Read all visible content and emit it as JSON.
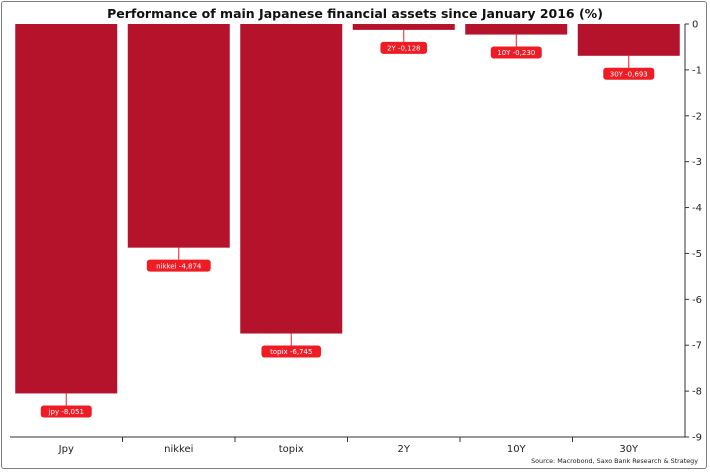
{
  "chart_data": {
    "type": "bar",
    "title": "Performance of main Japanese financial assets since January 2016 (%)",
    "source": "Source: Macrobond, Saxo Bank Research & Strategy",
    "categories": [
      "Jpy",
      "nikkei",
      "topix",
      "2Y",
      "10Y",
      "30Y"
    ],
    "values": [
      -8.051,
      -4.874,
      -6.745,
      -0.128,
      -0.23,
      -0.693
    ],
    "data_labels": [
      "jpy -8,051",
      "nikkei -4,874",
      "topix -6,745",
      "2Y -0,128",
      "10Y -0,230",
      "30Y -0,693"
    ],
    "ylim": [
      -9,
      0
    ],
    "yticks": [
      0,
      -1,
      -2,
      -3,
      -4,
      -5,
      -6,
      -7,
      -8,
      -9
    ],
    "ytick_labels": [
      "0",
      "-1",
      "-2",
      "-3",
      "-4",
      "-5",
      "-6",
      "-7",
      "-8",
      "-9"
    ],
    "y_axis_side": "right",
    "grid": false,
    "legend": "none",
    "bar_color": "#b5122b",
    "label_color": "#ee1c25"
  }
}
